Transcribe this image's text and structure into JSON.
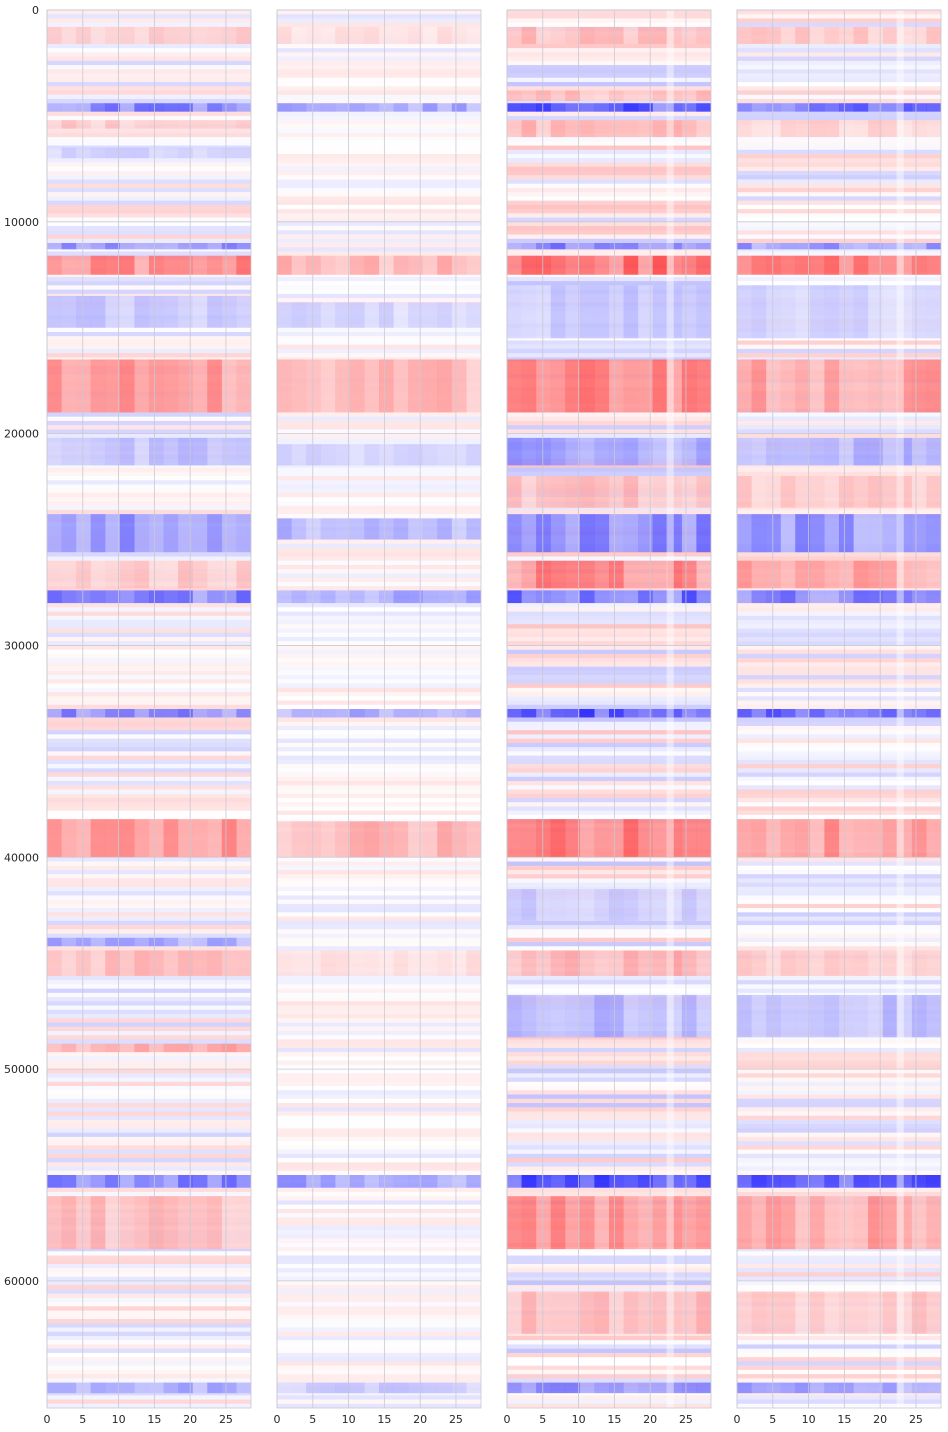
{
  "chart_data": [
    {
      "type": "heatmap",
      "panel": 1,
      "x_ticks": [
        0,
        5,
        10,
        15,
        20,
        25
      ],
      "y_ticks": [
        0,
        10000,
        20000,
        30000,
        40000,
        50000,
        60000
      ],
      "xlim": [
        0,
        28.5
      ],
      "ylim": [
        0,
        66000
      ],
      "grid": true,
      "colormap": "bwr",
      "intensity": 0.55,
      "bands": [
        {
          "y": [
            800,
            1600
          ],
          "value": 0.25
        },
        {
          "y": [
            4400,
            4800
          ],
          "value": -0.6
        },
        {
          "y": [
            5200,
            5600
          ],
          "value": 0.25
        },
        {
          "y": [
            6500,
            7000
          ],
          "value": -0.2
        },
        {
          "y": [
            11000,
            11300
          ],
          "value": -0.5
        },
        {
          "y": [
            11600,
            12500
          ],
          "value": 0.55
        },
        {
          "y": [
            13500,
            15000
          ],
          "value": -0.25
        },
        {
          "y": [
            16500,
            19000
          ],
          "value": 0.5
        },
        {
          "y": [
            20200,
            21500
          ],
          "value": -0.3
        },
        {
          "y": [
            23800,
            25600
          ],
          "value": -0.5
        },
        {
          "y": [
            26000,
            27300
          ],
          "value": 0.25
        },
        {
          "y": [
            27400,
            28000
          ],
          "value": -0.6
        },
        {
          "y": [
            33000,
            33400
          ],
          "value": -0.55
        },
        {
          "y": [
            38200,
            40000
          ],
          "value": 0.5
        },
        {
          "y": [
            43800,
            44200
          ],
          "value": -0.4
        },
        {
          "y": [
            44400,
            45600
          ],
          "value": 0.3
        },
        {
          "y": [
            48800,
            49200
          ],
          "value": 0.4
        },
        {
          "y": [
            55000,
            55600
          ],
          "value": -0.6
        },
        {
          "y": [
            56000,
            58500
          ],
          "value": 0.3
        },
        {
          "y": [
            64800,
            65300
          ],
          "value": -0.4
        }
      ]
    },
    {
      "type": "heatmap",
      "panel": 2,
      "x_ticks": [
        0,
        5,
        10,
        15,
        20,
        25
      ],
      "xlim": [
        0,
        28.5
      ],
      "ylim": [
        0,
        66000
      ],
      "grid": true,
      "colormap": "bwr",
      "intensity": 0.35,
      "bands": [
        {
          "y": [
            800,
            1600
          ],
          "value": 0.15
        },
        {
          "y": [
            4400,
            4800
          ],
          "value": -0.45
        },
        {
          "y": [
            11600,
            12500
          ],
          "value": 0.35
        },
        {
          "y": [
            13800,
            15000
          ],
          "value": -0.2
        },
        {
          "y": [
            16500,
            19000
          ],
          "value": 0.35
        },
        {
          "y": [
            20500,
            21500
          ],
          "value": -0.2
        },
        {
          "y": [
            24000,
            25000
          ],
          "value": -0.35
        },
        {
          "y": [
            27400,
            28000
          ],
          "value": -0.4
        },
        {
          "y": [
            33000,
            33400
          ],
          "value": -0.4
        },
        {
          "y": [
            38300,
            40000
          ],
          "value": 0.35
        },
        {
          "y": [
            44400,
            45600
          ],
          "value": 0.15
        },
        {
          "y": [
            55000,
            55600
          ],
          "value": -0.45
        },
        {
          "y": [
            64800,
            65300
          ],
          "value": -0.25
        }
      ]
    },
    {
      "type": "heatmap",
      "panel": 3,
      "x_ticks": [
        0,
        5,
        10,
        15,
        20,
        25
      ],
      "xlim": [
        0,
        28.5
      ],
      "ylim": [
        0,
        66000
      ],
      "grid": true,
      "colormap": "bwr",
      "intensity": 0.75,
      "bands": [
        {
          "y": [
            800,
            1600
          ],
          "value": 0.3
        },
        {
          "y": [
            3800,
            4300
          ],
          "value": 0.3
        },
        {
          "y": [
            4400,
            4800
          ],
          "value": -0.8
        },
        {
          "y": [
            5200,
            6000
          ],
          "value": 0.3
        },
        {
          "y": [
            11000,
            11300
          ],
          "value": -0.6
        },
        {
          "y": [
            11600,
            12500
          ],
          "value": 0.7
        },
        {
          "y": [
            13000,
            15500
          ],
          "value": -0.25
        },
        {
          "y": [
            16500,
            19000
          ],
          "value": 0.55
        },
        {
          "y": [
            20200,
            21500
          ],
          "value": -0.45
        },
        {
          "y": [
            22000,
            23500
          ],
          "value": 0.3
        },
        {
          "y": [
            23800,
            25600
          ],
          "value": -0.55
        },
        {
          "y": [
            26000,
            27300
          ],
          "value": 0.55
        },
        {
          "y": [
            27400,
            28000
          ],
          "value": -0.7
        },
        {
          "y": [
            33000,
            33400
          ],
          "value": -0.8
        },
        {
          "y": [
            38200,
            40000
          ],
          "value": 0.6
        },
        {
          "y": [
            41500,
            43000
          ],
          "value": -0.25
        },
        {
          "y": [
            44400,
            45600
          ],
          "value": 0.35
        },
        {
          "y": [
            46500,
            48500
          ],
          "value": -0.35
        },
        {
          "y": [
            55000,
            55600
          ],
          "value": -0.85
        },
        {
          "y": [
            56000,
            58500
          ],
          "value": 0.5
        },
        {
          "y": [
            60500,
            62500
          ],
          "value": 0.3
        },
        {
          "y": [
            64800,
            65300
          ],
          "value": -0.5
        }
      ]
    },
    {
      "type": "heatmap",
      "panel": 4,
      "x_ticks": [
        0,
        5,
        10,
        15,
        20,
        25
      ],
      "xlim": [
        0,
        28.5
      ],
      "ylim": [
        0,
        66000
      ],
      "grid": true,
      "colormap": "bwr",
      "intensity": 0.6,
      "bands": [
        {
          "y": [
            800,
            1600
          ],
          "value": 0.25
        },
        {
          "y": [
            4400,
            4800
          ],
          "value": -0.7
        },
        {
          "y": [
            5200,
            6000
          ],
          "value": 0.2
        },
        {
          "y": [
            11000,
            11300
          ],
          "value": -0.5
        },
        {
          "y": [
            11600,
            12500
          ],
          "value": 0.6
        },
        {
          "y": [
            13000,
            15500
          ],
          "value": -0.2
        },
        {
          "y": [
            16500,
            19000
          ],
          "value": 0.45
        },
        {
          "y": [
            20200,
            21500
          ],
          "value": -0.35
        },
        {
          "y": [
            22000,
            23500
          ],
          "value": 0.25
        },
        {
          "y": [
            23800,
            25600
          ],
          "value": -0.5
        },
        {
          "y": [
            26000,
            27300
          ],
          "value": 0.45
        },
        {
          "y": [
            27400,
            28000
          ],
          "value": -0.6
        },
        {
          "y": [
            33000,
            33400
          ],
          "value": -0.7
        },
        {
          "y": [
            38200,
            40000
          ],
          "value": 0.5
        },
        {
          "y": [
            44400,
            45600
          ],
          "value": 0.25
        },
        {
          "y": [
            46500,
            48500
          ],
          "value": -0.3
        },
        {
          "y": [
            55000,
            55600
          ],
          "value": -0.75
        },
        {
          "y": [
            56000,
            58500
          ],
          "value": 0.45
        },
        {
          "y": [
            60500,
            62500
          ],
          "value": 0.25
        },
        {
          "y": [
            64800,
            65300
          ],
          "value": -0.45
        }
      ]
    }
  ]
}
